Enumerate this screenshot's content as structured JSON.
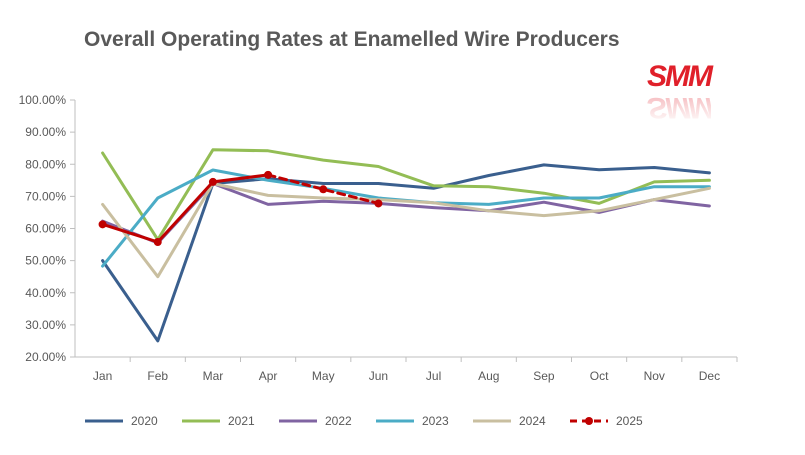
{
  "chart_data": {
    "type": "line",
    "title": "Overall Operating Rates at Enamelled Wire Producers",
    "logo": "SMM",
    "categories": [
      "Jan",
      "Feb",
      "Mar",
      "Apr",
      "May",
      "Jun",
      "Jul",
      "Aug",
      "Sep",
      "Oct",
      "Nov",
      "Dec"
    ],
    "ylim": [
      20,
      100
    ],
    "yticks": [
      "20.00%",
      "30.00%",
      "40.00%",
      "50.00%",
      "60.00%",
      "70.00%",
      "80.00%",
      "90.00%",
      "100.00%"
    ],
    "legend_position": "bottom",
    "grid": false,
    "series": [
      {
        "name": "2020",
        "color": "#3a5f8e",
        "dashed": false,
        "markers": false,
        "values": [
          50.0,
          25.0,
          74.0,
          75.5,
          74.0,
          74.0,
          72.5,
          76.5,
          79.8,
          78.3,
          79.0,
          77.3
        ]
      },
      {
        "name": "2021",
        "color": "#93bd55",
        "dashed": false,
        "markers": false,
        "values": [
          83.5,
          56.5,
          84.5,
          84.2,
          81.3,
          79.3,
          73.3,
          73.0,
          71.0,
          67.8,
          74.5,
          75.0
        ]
      },
      {
        "name": "2022",
        "color": "#8064a2",
        "dashed": false,
        "markers": false,
        "values": [
          62.3,
          55.5,
          74.0,
          67.5,
          68.5,
          67.8,
          66.5,
          65.5,
          68.2,
          65.0,
          69.0,
          67.0
        ]
      },
      {
        "name": "2023",
        "color": "#4bacc6",
        "dashed": false,
        "markers": false,
        "values": [
          48.3,
          69.5,
          78.2,
          75.0,
          72.5,
          69.5,
          68.0,
          67.5,
          69.5,
          69.5,
          73.0,
          73.0
        ]
      },
      {
        "name": "2024",
        "color": "#c9bfa0",
        "dashed": false,
        "markers": false,
        "values": [
          67.5,
          45.0,
          74.0,
          70.3,
          69.5,
          69.0,
          68.0,
          65.5,
          64.0,
          65.5,
          69.0,
          72.5
        ]
      },
      {
        "name": "2025",
        "color": "#c00000",
        "dashed": true,
        "markers": true,
        "values": [
          61.3,
          55.8,
          74.5,
          76.7,
          72.2,
          67.8,
          null,
          null,
          null,
          null,
          null,
          null
        ]
      }
    ]
  }
}
